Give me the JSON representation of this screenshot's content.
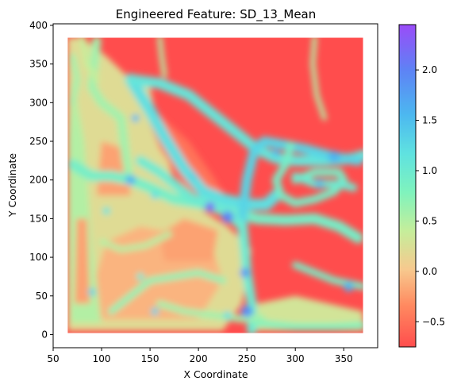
{
  "chart_data": {
    "type": "heatmap",
    "title": "Engineered Feature: SD_13_Mean",
    "xlabel": "X Coordinate",
    "ylabel": "Y Coordinate",
    "xlim": [
      50,
      385
    ],
    "ylim": [
      -17,
      402
    ],
    "x_ticks": [
      50,
      100,
      150,
      200,
      250,
      300,
      350
    ],
    "y_ticks": [
      0,
      50,
      100,
      150,
      200,
      250,
      300,
      350,
      400
    ],
    "data_extent": {
      "x": [
        65,
        370
      ],
      "y": [
        2,
        384
      ]
    },
    "colormap": "rainbow",
    "colorbar": {
      "min": -0.75,
      "max": 2.45,
      "ticks": [
        -0.5,
        0.0,
        0.5,
        1.0,
        1.5,
        2.0
      ],
      "tick_labels": [
        "−0.5",
        "0.0",
        "0.5",
        "1.0",
        "1.5",
        "2.0"
      ]
    },
    "background_value": -0.75,
    "features": [
      {
        "type": "region",
        "value": 0.2,
        "points": [
          [
            65,
            5
          ],
          [
            225,
            5
          ],
          [
            245,
            40
          ],
          [
            255,
            110
          ],
          [
            230,
            140
          ],
          [
            205,
            160
          ],
          [
            175,
            200
          ],
          [
            160,
            260
          ],
          [
            150,
            320
          ],
          [
            130,
            330
          ],
          [
            105,
            360
          ],
          [
            80,
            384
          ],
          [
            65,
            384
          ]
        ]
      },
      {
        "type": "region",
        "value": -0.1,
        "points": [
          [
            95,
            20
          ],
          [
            200,
            20
          ],
          [
            225,
            70
          ],
          [
            215,
            110
          ],
          [
            180,
            130
          ],
          [
            140,
            140
          ],
          [
            105,
            120
          ],
          [
            90,
            60
          ]
        ]
      },
      {
        "type": "region",
        "value": -0.2,
        "points": [
          [
            165,
            95
          ],
          [
            215,
            95
          ],
          [
            220,
            135
          ],
          [
            185,
            150
          ],
          [
            160,
            130
          ]
        ]
      },
      {
        "type": "region",
        "value": 0.5,
        "points": [
          [
            68,
            15
          ],
          [
            100,
            15
          ],
          [
            90,
            120
          ],
          [
            82,
            250
          ],
          [
            70,
            330
          ],
          [
            66,
            250
          ]
        ]
      },
      {
        "type": "region",
        "value": -0.2,
        "points": [
          [
            72,
            40
          ],
          [
            88,
            40
          ],
          [
            85,
            150
          ],
          [
            74,
            150
          ]
        ]
      },
      {
        "type": "region",
        "value": -0.5,
        "points": [
          [
            155,
            290
          ],
          [
            190,
            250
          ],
          [
            215,
            205
          ],
          [
            230,
            175
          ],
          [
            215,
            165
          ],
          [
            185,
            195
          ],
          [
            160,
            240
          ],
          [
            148,
            280
          ]
        ]
      },
      {
        "type": "region",
        "value": -0.2,
        "points": [
          [
            95,
            180
          ],
          [
            130,
            180
          ],
          [
            125,
            240
          ],
          [
            100,
            250
          ]
        ]
      },
      {
        "type": "region",
        "value": 0.3,
        "points": [
          [
            255,
            5
          ],
          [
            370,
            5
          ],
          [
            370,
            30
          ],
          [
            300,
            50
          ],
          [
            260,
            40
          ]
        ]
      },
      {
        "type": "path",
        "value": 0.6,
        "width": 9,
        "points": [
          [
            95,
            380
          ],
          [
            90,
            320
          ],
          [
            100,
            300
          ],
          [
            120,
            280
          ],
          [
            125,
            230
          ],
          [
            128,
            210
          ]
        ]
      },
      {
        "type": "path",
        "value": 0.9,
        "width": 11,
        "points": [
          [
            70,
            220
          ],
          [
            90,
            205
          ],
          [
            110,
            205
          ],
          [
            130,
            200
          ],
          [
            150,
            190
          ],
          [
            175,
            175
          ],
          [
            200,
            170
          ],
          [
            230,
            160
          ],
          [
            260,
            150
          ],
          [
            290,
            148
          ],
          [
            320,
            150
          ],
          [
            345,
            140
          ],
          [
            365,
            125
          ]
        ]
      },
      {
        "type": "path",
        "value": 1.2,
        "width": 12,
        "points": [
          [
            130,
            330
          ],
          [
            140,
            310
          ],
          [
            150,
            290
          ],
          [
            165,
            255
          ],
          [
            185,
            215
          ],
          [
            205,
            185
          ],
          [
            225,
            175
          ],
          [
            250,
            168
          ],
          [
            270,
            168
          ],
          [
            280,
            180
          ]
        ]
      },
      {
        "type": "path",
        "value": 1.1,
        "width": 11,
        "points": [
          [
            130,
            330
          ],
          [
            160,
            325
          ],
          [
            190,
            310
          ],
          [
            210,
            290
          ],
          [
            235,
            265
          ],
          [
            260,
            240
          ],
          [
            280,
            228
          ],
          [
            300,
            225
          ],
          [
            330,
            225
          ],
          [
            360,
            228
          ],
          [
            370,
            232
          ]
        ]
      },
      {
        "type": "path",
        "value": 1.3,
        "width": 10,
        "points": [
          [
            248,
            112
          ],
          [
            245,
            150
          ],
          [
            250,
            200
          ],
          [
            258,
            240
          ],
          [
            268,
            250
          ],
          [
            290,
            245
          ],
          [
            310,
            240
          ],
          [
            340,
            230
          ],
          [
            365,
            225
          ]
        ]
      },
      {
        "type": "path",
        "value": 1.0,
        "width": 10,
        "points": [
          [
            255,
            5
          ],
          [
            255,
            40
          ],
          [
            250,
            80
          ],
          [
            248,
            112
          ],
          [
            245,
            140
          ],
          [
            232,
            155
          ],
          [
            215,
            168
          ],
          [
            195,
            175
          ],
          [
            175,
            195
          ],
          [
            160,
            210
          ],
          [
            140,
            225
          ]
        ]
      },
      {
        "type": "path",
        "value": 0.9,
        "width": 8,
        "points": [
          [
            295,
            245
          ],
          [
            290,
            220
          ],
          [
            280,
            200
          ],
          [
            285,
            180
          ],
          [
            300,
            170
          ],
          [
            320,
            175
          ],
          [
            340,
            185
          ],
          [
            350,
            200
          ],
          [
            345,
            210
          ],
          [
            320,
            210
          ],
          [
            300,
            200
          ]
        ]
      },
      {
        "type": "path",
        "value": 1.0,
        "width": 8,
        "points": [
          [
            300,
            205
          ],
          [
            320,
            195
          ],
          [
            345,
            195
          ],
          [
            360,
            190
          ]
        ]
      },
      {
        "type": "path",
        "value": 0.8,
        "width": 7,
        "points": [
          [
            260,
            15
          ],
          [
            300,
            10
          ],
          [
            340,
            10
          ],
          [
            370,
            12
          ]
        ]
      },
      {
        "type": "path",
        "value": 0.9,
        "width": 7,
        "points": [
          [
            300,
            90
          ],
          [
            320,
            80
          ],
          [
            340,
            70
          ],
          [
            360,
            65
          ],
          [
            370,
            62
          ]
        ]
      },
      {
        "type": "path",
        "value": 0.6,
        "width": 7,
        "points": [
          [
            160,
            40
          ],
          [
            185,
            30
          ],
          [
            215,
            25
          ],
          [
            245,
            20
          ],
          [
            265,
            22
          ]
        ]
      },
      {
        "type": "path",
        "value": 0.7,
        "width": 7,
        "points": [
          [
            110,
            30
          ],
          [
            130,
            50
          ],
          [
            150,
            70
          ],
          [
            175,
            75
          ],
          [
            200,
            80
          ],
          [
            225,
            70
          ]
        ]
      },
      {
        "type": "path",
        "value": 0.5,
        "width": 6,
        "points": [
          [
            100,
            120
          ],
          [
            120,
            110
          ],
          [
            145,
            115
          ],
          [
            170,
            130
          ]
        ]
      },
      {
        "type": "path",
        "value": 0.6,
        "width": 6,
        "points": [
          [
            70,
            300
          ],
          [
            75,
            330
          ],
          [
            70,
            360
          ]
        ]
      },
      {
        "type": "path",
        "value": 0.5,
        "width": 5,
        "points": [
          [
            160,
            384
          ],
          [
            162,
            360
          ],
          [
            165,
            335
          ]
        ]
      },
      {
        "type": "path",
        "value": 0.5,
        "width": 5,
        "points": [
          [
            320,
            384
          ],
          [
            318,
            350
          ],
          [
            322,
            310
          ],
          [
            330,
            280
          ]
        ]
      },
      {
        "type": "path",
        "value": 0.4,
        "width": 6,
        "points": [
          [
            80,
            384
          ],
          [
            85,
            350
          ],
          [
            95,
            330
          ]
        ]
      },
      {
        "type": "blob",
        "value": 2.2,
        "x": 212,
        "y": 165,
        "r": 5
      },
      {
        "type": "blob",
        "value": 2.0,
        "x": 230,
        "y": 152,
        "r": 6
      },
      {
        "type": "blob",
        "value": 1.8,
        "x": 248,
        "y": 80,
        "r": 5
      },
      {
        "type": "blob",
        "value": 1.9,
        "x": 250,
        "y": 30,
        "r": 6
      },
      {
        "type": "blob",
        "value": 1.6,
        "x": 130,
        "y": 200,
        "r": 5
      },
      {
        "type": "blob",
        "value": 1.6,
        "x": 355,
        "y": 62,
        "r": 5
      },
      {
        "type": "blob",
        "value": 1.6,
        "x": 340,
        "y": 230,
        "r": 6
      },
      {
        "type": "blob",
        "value": 1.5,
        "x": 280,
        "y": 235,
        "r": 4
      },
      {
        "type": "blob",
        "value": 1.5,
        "x": 135,
        "y": 280,
        "r": 4
      },
      {
        "type": "blob",
        "value": 1.4,
        "x": 325,
        "y": 195,
        "r": 5
      },
      {
        "type": "blob",
        "value": 1.3,
        "x": 195,
        "y": 205,
        "r": 4
      },
      {
        "type": "blob",
        "value": 1.2,
        "x": 155,
        "y": 180,
        "r": 4
      },
      {
        "type": "blob",
        "value": 1.3,
        "x": 90,
        "y": 55,
        "r": 4
      },
      {
        "type": "blob",
        "value": 1.3,
        "x": 155,
        "y": 30,
        "r": 4
      },
      {
        "type": "blob",
        "value": 1.2,
        "x": 230,
        "y": 25,
        "r": 4
      },
      {
        "type": "blob",
        "value": 1.1,
        "x": 105,
        "y": 160,
        "r": 4
      },
      {
        "type": "blob",
        "value": 1.0,
        "x": 140,
        "y": 75,
        "r": 4
      },
      {
        "type": "blob",
        "value": -0.2,
        "x": 405,
        "y": 182,
        "r": 6
      },
      {
        "type": "blob",
        "value": 0.1,
        "x": 385,
        "y": 108,
        "r": 4
      }
    ]
  }
}
